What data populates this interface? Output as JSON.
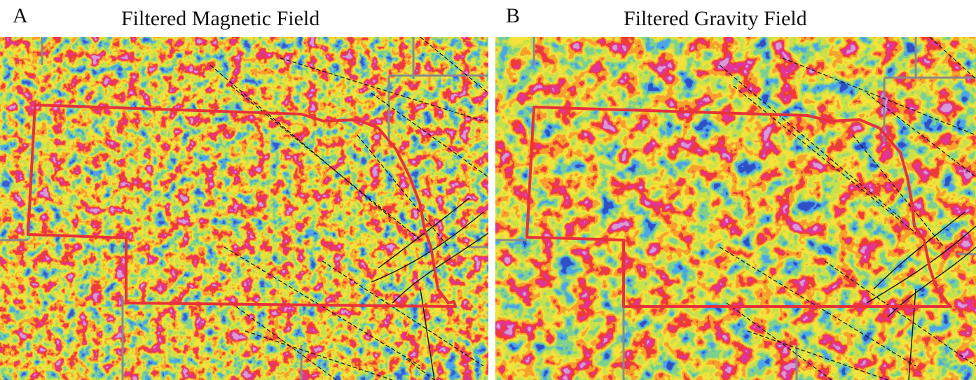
{
  "figure": {
    "panels": [
      {
        "letter": "A",
        "title": "Filtered Magnetic Field",
        "colormap": [
          "#3a5ad1",
          "#4aa6e8",
          "#7dd18e",
          "#c8e04a",
          "#f2e23a",
          "#f7a12d",
          "#ef3a3a",
          "#e0349a",
          "#d69ad8"
        ],
        "seed": 17,
        "scale": 0.055
      },
      {
        "letter": "B",
        "title": "Filtered Gravity Field",
        "colormap": [
          "#2f4fc7",
          "#4aa6e8",
          "#7dd18e",
          "#c8e04a",
          "#f2e23a",
          "#f7a12d",
          "#ef3a3a",
          "#e0349a",
          "#d69ad8"
        ],
        "seed": 41,
        "scale": 0.035
      }
    ],
    "boundary_color": "#e8313a",
    "fault_color": "#111111",
    "county_color": "#8a8a8a"
  }
}
